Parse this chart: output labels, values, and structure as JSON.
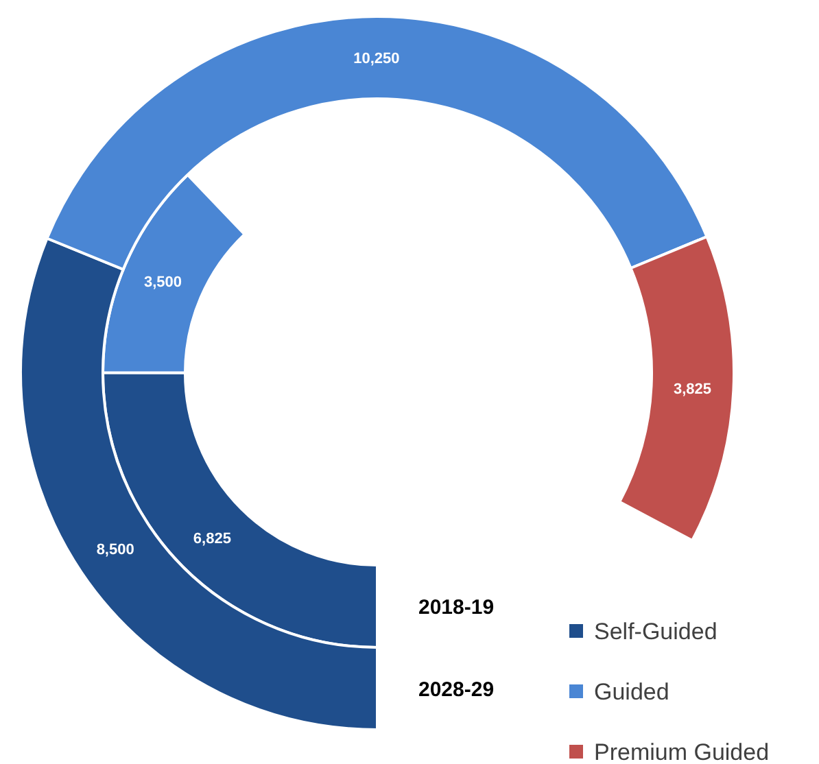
{
  "chart_data": {
    "type": "donut",
    "categories": [
      "Self-Guided",
      "Guided",
      "Premium Guided"
    ],
    "colors": [
      "#1f4e8c",
      "#4a86d4",
      "#c0504d"
    ],
    "series": [
      {
        "name": "2018-19",
        "values": [
          6825,
          3500,
          null
        ],
        "value_labels": [
          "6,825",
          "3,500",
          null
        ]
      },
      {
        "name": "2028-29",
        "values": [
          8500,
          10250,
          3825
        ],
        "value_labels": [
          "8,500",
          "10,250",
          "3,825"
        ]
      }
    ],
    "legend": "bottom right"
  }
}
